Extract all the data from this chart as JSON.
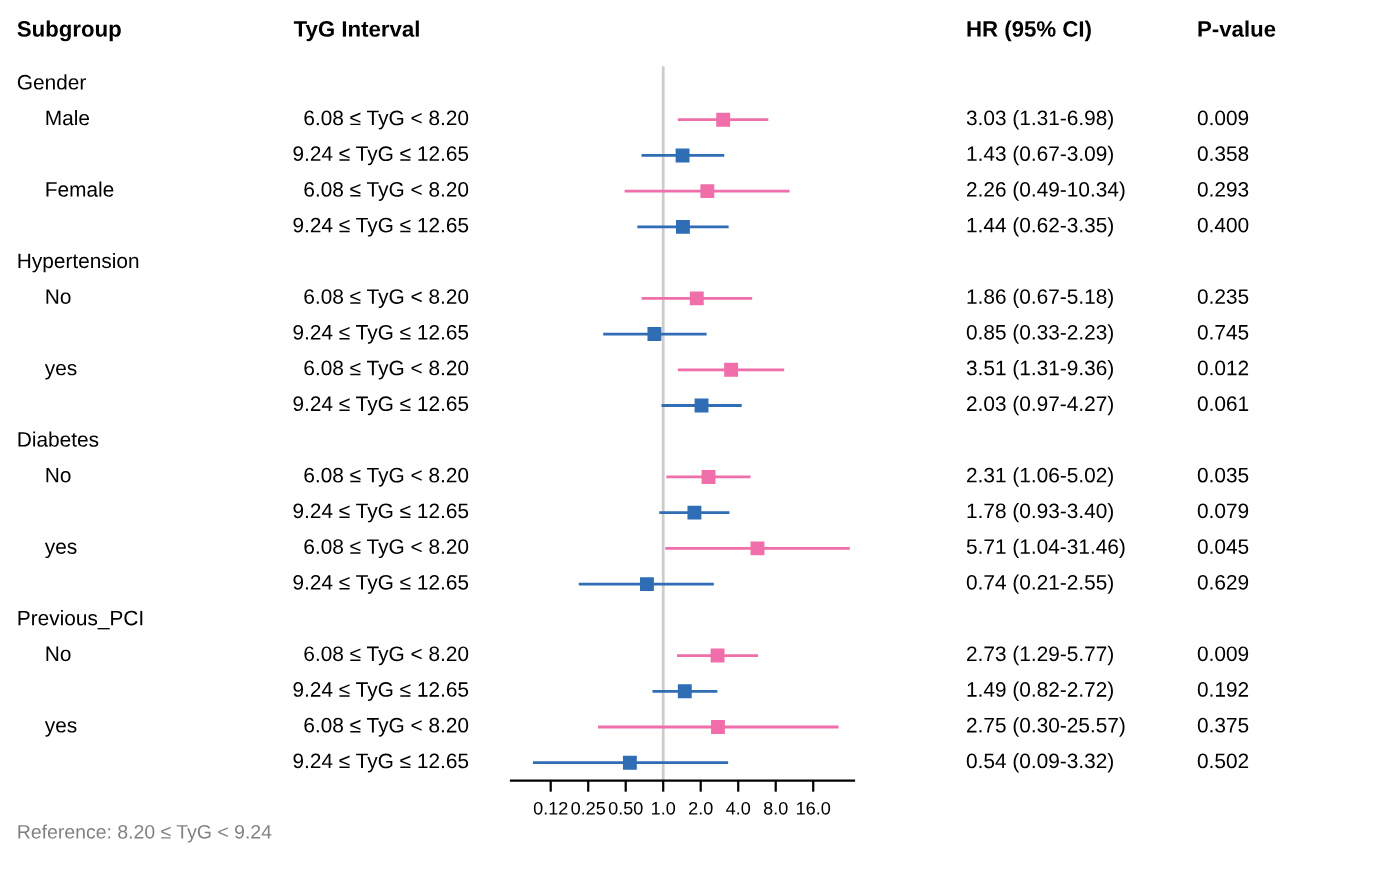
{
  "chart_data": {
    "type": "scatter",
    "orientation": "horizontal",
    "log": "x",
    "marker": "square",
    "line_style": "solid",
    "categories": [
      null,
      "6.08 ≤ TyG < 8.20",
      "9.24 ≤ TyG ≤ 12.65",
      "6.08 ≤ TyG < 8.20",
      "9.24 ≤ TyG ≤ 12.65",
      null,
      "6.08 ≤ TyG < 8.20",
      "9.24 ≤ TyG ≤ 12.65",
      "6.08 ≤ TyG < 8.20",
      "9.24 ≤ TyG ≤ 12.65",
      null,
      "6.08 ≤ TyG < 8.20",
      "9.24 ≤ TyG ≤ 12.65",
      "6.08 ≤ TyG < 8.20",
      "9.24 ≤ TyG ≤ 12.65",
      null,
      "6.08 ≤ TyG < 8.20",
      "9.24 ≤ TyG ≤ 12.65",
      "6.08 ≤ TyG < 8.20",
      "9.24 ≤ TyG ≤ 12.65"
    ],
    "y2_categories": [
      "Gender",
      "Male",
      null,
      "Female",
      null,
      "Hypertension",
      "No",
      null,
      "yes",
      null,
      "Diabetes",
      "No",
      null,
      "yes",
      null,
      "Previous_PCI",
      "No",
      null,
      "yes",
      null
    ],
    "values": [
      null,
      3.03,
      1.43,
      2.26,
      1.44,
      null,
      1.86,
      0.85,
      3.51,
      2.03,
      null,
      2.31,
      1.78,
      5.71,
      0.74,
      null,
      2.73,
      1.49,
      2.75,
      0.54
    ],
    "errors": [
      null,
      [
        1.31,
        6.98
      ],
      [
        0.67,
        3.09
      ],
      [
        0.49,
        10.34
      ],
      [
        0.62,
        3.35
      ],
      null,
      [
        0.67,
        5.18
      ],
      [
        0.33,
        2.23
      ],
      [
        1.31,
        9.36
      ],
      [
        0.97,
        4.27
      ],
      null,
      [
        1.06,
        5.02
      ],
      [
        0.93,
        3.4
      ],
      [
        1.04,
        31.46
      ],
      [
        0.21,
        2.55
      ],
      null,
      [
        1.29,
        5.77
      ],
      [
        0.82,
        2.72
      ],
      [
        0.3,
        25.57
      ],
      [
        0.09,
        3.32
      ]
    ],
    "colors": [
      "#f06ea9",
      "#f06ea9",
      "#2f6db5",
      "#f06ea9",
      "#2f6db5",
      "#f06ea9",
      "#f06ea9",
      "#2f6db5",
      "#f06ea9",
      "#2f6db5",
      "#f06ea9",
      "#f06ea9",
      "#2f6db5",
      "#f06ea9",
      "#2f6db5",
      "#f06ea9",
      "#f06ea9",
      "#2f6db5",
      "#f06ea9",
      "#2f6db5"
    ],
    "annotations": [
      "Subgroup",
      "TyG Interval",
      "HR (95% CI)",
      "P-value",
      "Reference: 8.20 ≤ TyG < 9.24",
      "3.03 (1.31-6.98)",
      "1.43 (0.67-3.09)",
      "2.26 (0.49-10.34)",
      "1.44 (0.62-3.35)",
      "1.86 (0.67-5.18)",
      "0.85 (0.33-2.23)",
      "3.51 (1.31-9.36)",
      "2.03 (0.97-4.27)",
      "2.31 (1.06-5.02)",
      "1.78 (0.93-3.40)",
      "5.71 (1.04-31.46)",
      "0.74 (0.21-2.55)",
      "2.73 (1.29-5.77)",
      "1.49 (0.82-2.72)",
      "2.75 (0.30-25.57)",
      "0.54 (0.09-3.32)",
      "0.009",
      "0.358",
      "0.293",
      "0.400",
      "0.235",
      "0.745",
      "0.012",
      "0.061",
      "0.035",
      "0.079",
      "0.045",
      "0.629",
      "0.009",
      "0.192",
      "0.375",
      "0.502"
    ],
    "xlim": [
      0.06,
      34
    ],
    "xticks": [
      {
        "value": 0.125,
        "label": "0.12"
      },
      {
        "value": 0.25,
        "label": "0.25"
      },
      {
        "value": 0.5,
        "label": "0.50"
      },
      {
        "value": 1,
        "label": "1.0"
      },
      {
        "value": 2,
        "label": "2.0"
      },
      {
        "value": 4,
        "label": "4.0"
      },
      {
        "value": 8,
        "label": "8.0"
      },
      {
        "value": 16,
        "label": "16.0"
      }
    ],
    "ref_lines": [
      {
        "axis": "x",
        "value": 1,
        "label": null,
        "color": "#cccccc"
      }
    ]
  }
}
